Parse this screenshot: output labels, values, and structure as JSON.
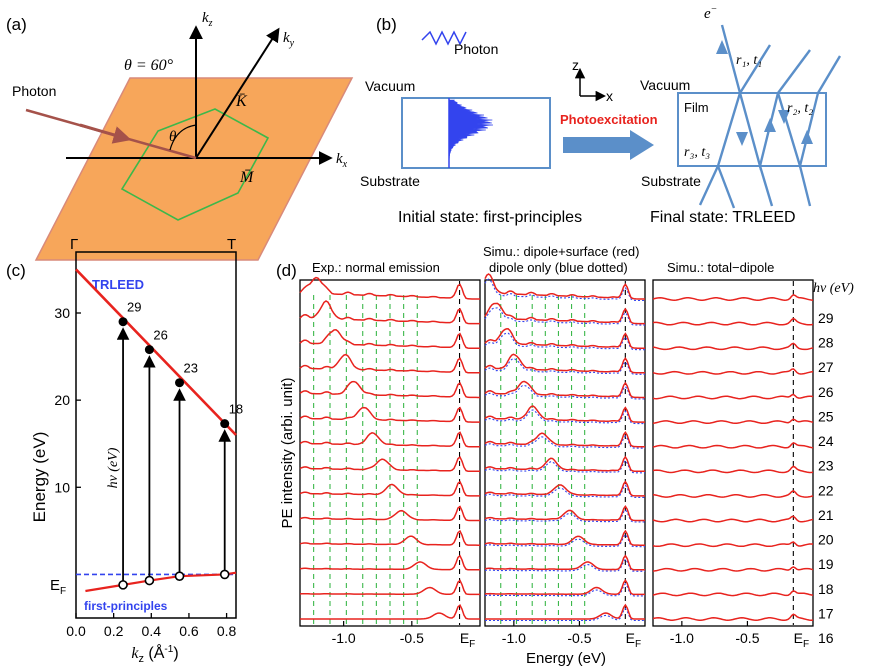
{
  "colors": {
    "orange": "#F7A65A",
    "orange_edge": "#D98A7A",
    "green": "#3CB84A",
    "blue": "#5B8FC9",
    "red": "#E8231E",
    "photon_arrow": "#A5524A",
    "spectrum_blue": "#3344EE"
  },
  "panel_a": {
    "label": "(a)",
    "theta_eq": "θ = 60°",
    "photon": "Photon",
    "kz": "k",
    "kz_sub": "z",
    "ky": "k",
    "ky_sub": "y",
    "kx": "k",
    "kx_sub": "x",
    "K": "K̄",
    "M": "M̄",
    "theta": "θ"
  },
  "panel_b": {
    "label": "(b)",
    "photon": "Photon",
    "vacuum_left": "Vacuum",
    "substrate_left": "Substrate",
    "axis_z": "z",
    "axis_x": "x",
    "photoexcitation": "Photoexcitation",
    "electron": "e",
    "electron_sup": "−",
    "vacuum_right": "Vacuum",
    "film": "Film",
    "substrate_right": "Substrate",
    "r1t1": "r₁, t₁",
    "r2t2": "r₂, t₂",
    "r3t3": "r₃, t₃",
    "caption_left": "Initial state: first-principles",
    "caption_right": "Final state: TRLEED"
  },
  "panel_c": {
    "label": "(c)",
    "gamma": "Γ",
    "T": "T",
    "trleed": "TRLEED",
    "first_principles": "first-principles",
    "ylabel": "Energy (eV)",
    "xlabel_k": "k",
    "xlabel_sub": "z",
    "xlabel_unit": " (Å",
    "xlabel_sup": "-1",
    "xlabel_end": ")",
    "ef": "E",
    "ef_sub": "F",
    "hv_label": "hν (eV)",
    "yticks": [
      "10",
      "20",
      "30"
    ],
    "xticks": [
      "0.0",
      "0.2",
      "0.4",
      "0.6",
      "0.8"
    ],
    "transition_labels": [
      "29",
      "26",
      "23",
      "18"
    ]
  },
  "chart_data": {
    "type": "line",
    "xlim": [
      0.0,
      0.85
    ],
    "ylim": [
      -5,
      37
    ],
    "final_state_band": {
      "name": "TRLEED",
      "x": [
        0.0,
        0.85
      ],
      "y": [
        35.0,
        16.0
      ]
    },
    "transitions": [
      {
        "hv": 29,
        "kz": 0.25,
        "initial": -1.2,
        "final": 29.0
      },
      {
        "hv": 26,
        "kz": 0.39,
        "initial": -0.7,
        "final": 25.8
      },
      {
        "hv": 23,
        "kz": 0.55,
        "initial": -0.2,
        "final": 22.0
      },
      {
        "hv": 18,
        "kz": 0.79,
        "initial": 0.0,
        "final": 17.3
      }
    ]
  },
  "panel_d": {
    "label": "(d)",
    "title_left": "Exp.: normal emission",
    "title_mid_1": "Simu.: dipole+surface (red)",
    "title_mid_2": "dipole only (blue dotted)",
    "title_right": "Simu.: total−dipole",
    "hv_header": "hν (eV)",
    "ylabel": "PE intensity (arbi. unit)",
    "xlabel": "Energy (eV)",
    "xticks": [
      "-1.0",
      "-0.5"
    ],
    "ef": "E",
    "ef_sub": "F",
    "hv_values": [
      "29",
      "28",
      "27",
      "26",
      "25",
      "24",
      "23",
      "22",
      "21",
      "20",
      "19",
      "18",
      "17",
      "16"
    ]
  }
}
